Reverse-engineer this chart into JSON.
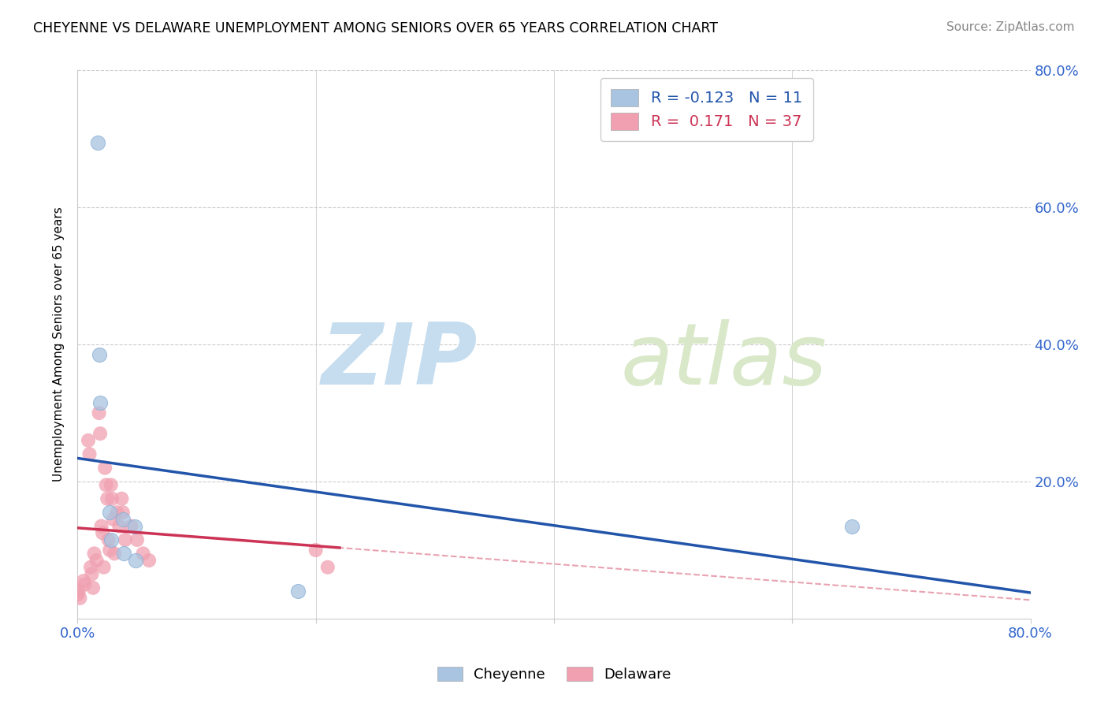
{
  "title": "CHEYENNE VS DELAWARE UNEMPLOYMENT AMONG SENIORS OVER 65 YEARS CORRELATION CHART",
  "source": "Source: ZipAtlas.com",
  "legend_cheyenne": "Cheyenne",
  "legend_delaware": "Delaware",
  "ylabel": "Unemployment Among Seniors over 65 years",
  "xlim": [
    0.0,
    0.8
  ],
  "ylim": [
    0.0,
    0.8
  ],
  "cheyenne_R": -0.123,
  "cheyenne_N": 11,
  "delaware_R": 0.171,
  "delaware_N": 37,
  "cheyenne_color": "#a8c4e0",
  "cheyenne_line_color": "#2255aa",
  "delaware_color": "#f0a0b0",
  "delaware_line_color": "#cc3355",
  "watermark_color": "#d0e4f0",
  "watermark_zip": "ZIP",
  "watermark_atlas": "atlas",
  "cheyenne_x": [
    0.017,
    0.018,
    0.019,
    0.027,
    0.028,
    0.038,
    0.039,
    0.048,
    0.049,
    0.185,
    0.65
  ],
  "cheyenne_y": [
    0.695,
    0.385,
    0.315,
    0.155,
    0.115,
    0.145,
    0.095,
    0.135,
    0.085,
    0.04,
    0.135
  ],
  "delaware_x": [
    0.0,
    0.001,
    0.002,
    0.005,
    0.006,
    0.009,
    0.01,
    0.011,
    0.012,
    0.013,
    0.014,
    0.016,
    0.018,
    0.019,
    0.02,
    0.021,
    0.022,
    0.023,
    0.024,
    0.025,
    0.026,
    0.027,
    0.028,
    0.029,
    0.03,
    0.031,
    0.033,
    0.035,
    0.037,
    0.038,
    0.04,
    0.045,
    0.05,
    0.055,
    0.06,
    0.2,
    0.21
  ],
  "delaware_y": [
    0.035,
    0.04,
    0.03,
    0.055,
    0.05,
    0.26,
    0.24,
    0.075,
    0.065,
    0.045,
    0.095,
    0.085,
    0.3,
    0.27,
    0.135,
    0.125,
    0.075,
    0.22,
    0.195,
    0.175,
    0.115,
    0.1,
    0.195,
    0.175,
    0.145,
    0.095,
    0.155,
    0.135,
    0.175,
    0.155,
    0.115,
    0.135,
    0.115,
    0.095,
    0.085,
    0.1,
    0.075
  ],
  "background_color": "#ffffff",
  "grid_color": "#cccccc"
}
